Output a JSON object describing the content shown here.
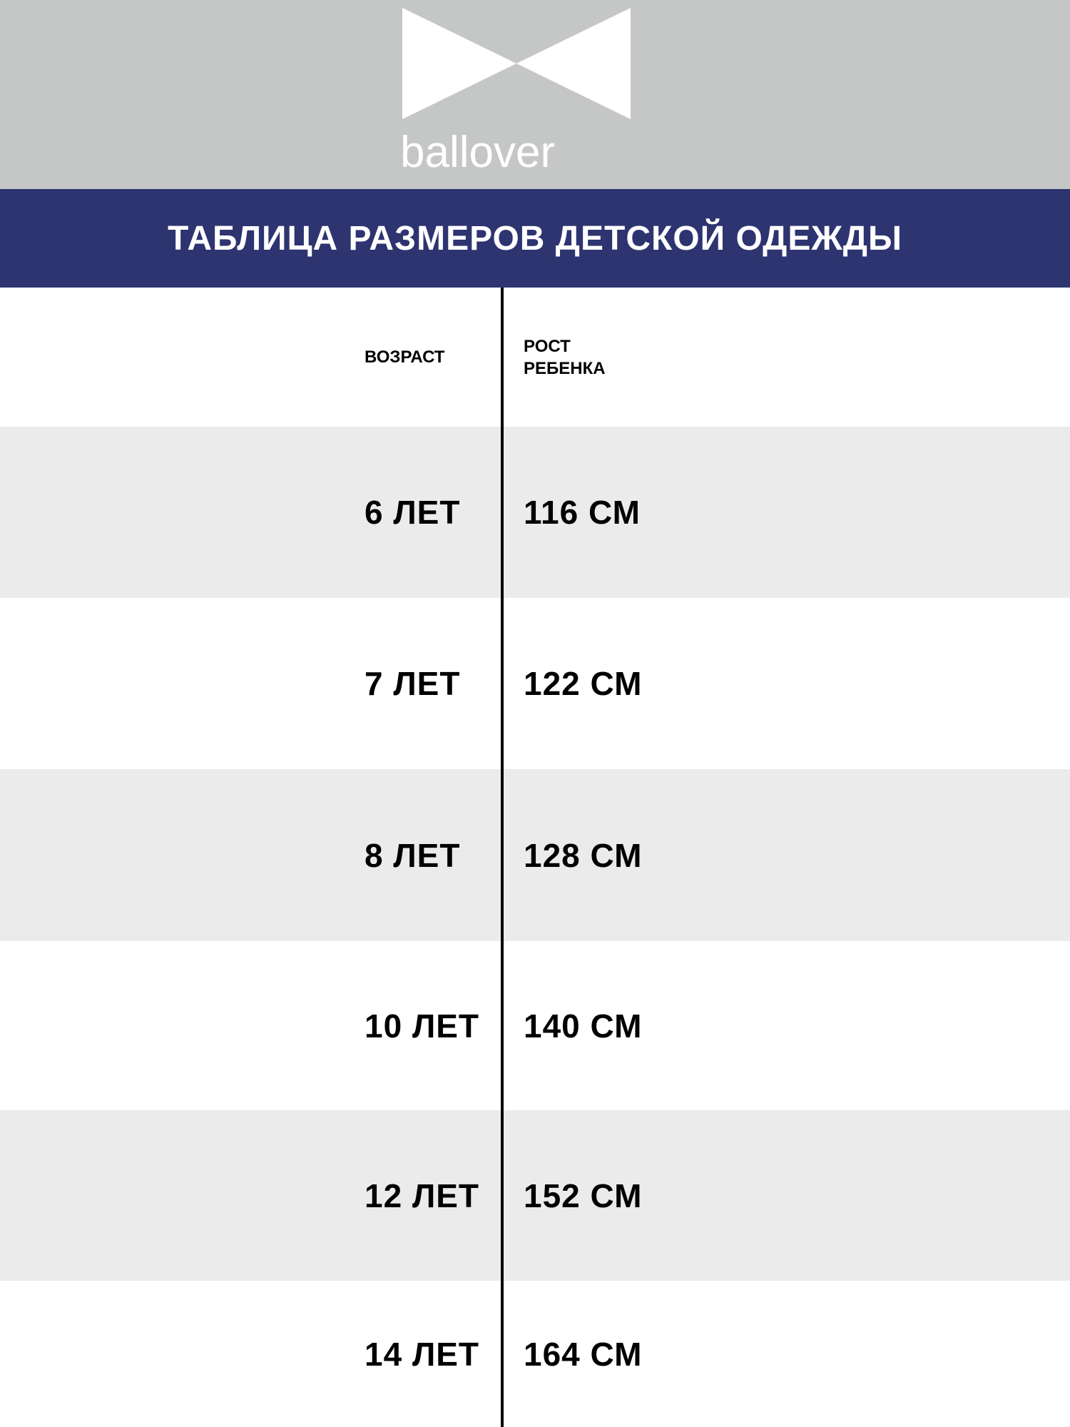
{
  "brand": {
    "name": "ballover",
    "logo_icon": "bow-tie-icon"
  },
  "title": "ТАБЛИЦА РАЗМЕРОВ ДЕТСКОЙ ОДЕЖДЫ",
  "colors": {
    "header_bg": "#c5c7c6",
    "title_band": "#2d3470",
    "row_alt": "#ebebeb"
  },
  "table": {
    "headers": {
      "age": "ВОЗРАСТ",
      "height_line1": "РОСТ",
      "height_line2": "РЕБЕНКА"
    },
    "rows": [
      {
        "age": "6 ЛЕТ",
        "height": "116 СМ"
      },
      {
        "age": "7 ЛЕТ",
        "height": "122 СМ"
      },
      {
        "age": "8 ЛЕТ",
        "height": "128 СМ"
      },
      {
        "age": "10 ЛЕТ",
        "height": "140 СМ"
      },
      {
        "age": "12 ЛЕТ",
        "height": "152 СМ"
      },
      {
        "age": "14 ЛЕТ",
        "height": "164 СМ"
      }
    ]
  }
}
